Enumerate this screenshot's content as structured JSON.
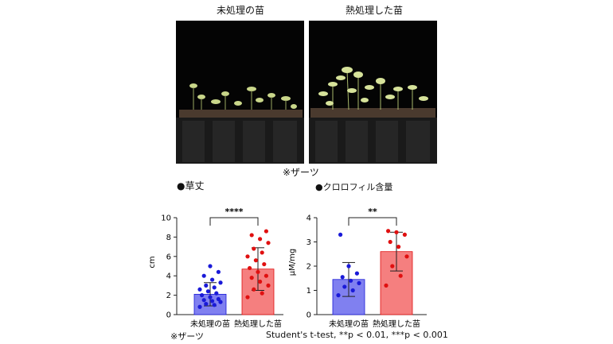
{
  "photos": {
    "left_label": "未処理の苗",
    "right_label": "熱処理した苗",
    "caption": "※ザーツ"
  },
  "colors": {
    "blue_bar": "#8080f0",
    "blue_point": "#1a1ad8",
    "red_bar": "#f57f7f",
    "red_point": "#e01010"
  },
  "footer": {
    "note": "※ザーツ",
    "stats": "Student's t-test, **p < 0.01, ***p < 0.001"
  },
  "chart_data": [
    {
      "type": "bar",
      "heading": "●草丈",
      "ylabel": "cm",
      "ylim": [
        0,
        10
      ],
      "yticks": [
        0,
        2,
        4,
        6,
        8,
        10
      ],
      "categories": [
        "未処理の苗",
        "熱処理した苗"
      ],
      "values": [
        2.1,
        4.7
      ],
      "errors": [
        1.2,
        2.2
      ],
      "significance": "****",
      "points": [
        [
          0.8,
          1.0,
          1.1,
          1.3,
          1.4,
          1.5,
          1.6,
          1.8,
          2.0,
          2.2,
          2.4,
          2.6,
          2.8,
          3.0,
          3.3,
          3.6,
          4.0,
          4.4,
          5.0
        ],
        [
          1.8,
          2.2,
          2.6,
          3.0,
          3.4,
          3.8,
          4.0,
          4.4,
          4.8,
          5.2,
          5.6,
          6.0,
          6.4,
          6.8,
          7.4,
          7.8,
          8.2,
          8.6
        ]
      ]
    },
    {
      "type": "bar",
      "heading": "●クロロフィル含量",
      "ylabel": "μM/mg",
      "ylim": [
        0,
        4
      ],
      "yticks": [
        0,
        1,
        2,
        3,
        4
      ],
      "categories": [
        "未処理の苗",
        "熱処理した苗"
      ],
      "values": [
        1.45,
        2.6
      ],
      "errors": [
        0.7,
        0.8
      ],
      "significance": "**",
      "points": [
        [
          0.8,
          1.0,
          1.15,
          1.3,
          1.4,
          1.55,
          1.7,
          2.0,
          3.3
        ],
        [
          1.2,
          1.6,
          2.0,
          2.4,
          2.8,
          3.0,
          3.3,
          3.4,
          3.45
        ]
      ]
    }
  ]
}
